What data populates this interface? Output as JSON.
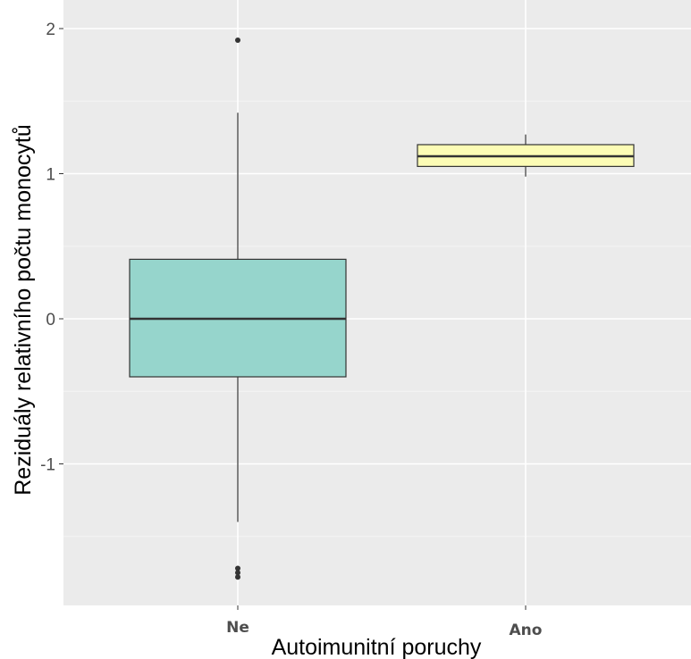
{
  "chart_data": {
    "type": "boxplot",
    "title": "",
    "xlabel": "Autoimunitní poruchy",
    "ylabel": "Reziduály relativního počtu monocytů",
    "ylim": [
      -1.98,
      2.1
    ],
    "yticks": [
      2,
      1,
      0,
      -1
    ],
    "ytick_labels": [
      "2",
      "1",
      "0",
      "-1"
    ],
    "grid": true,
    "legend": "none",
    "categories": [
      "Ne",
      "Ano"
    ],
    "boxes": [
      {
        "category": "Ne",
        "color": "#96d5cc",
        "lower_whisker": -1.4,
        "q1": -0.4,
        "median": 0.0,
        "q3": 0.41,
        "upper_whisker": 1.42,
        "outliers": [
          1.92,
          -1.72,
          -1.75,
          -1.78
        ]
      },
      {
        "category": "Ano",
        "color": "#fcfcb5",
        "lower_whisker": 0.98,
        "q1": 1.05,
        "median": 1.12,
        "q3": 1.2,
        "upper_whisker": 1.27,
        "outliers": []
      }
    ]
  },
  "colors": {
    "panel_background": "#ebebeb",
    "grid_major": "#ffffff",
    "grid_minor": "#f5f5f5",
    "box_outline": "#333333",
    "outlier": "#333333"
  }
}
